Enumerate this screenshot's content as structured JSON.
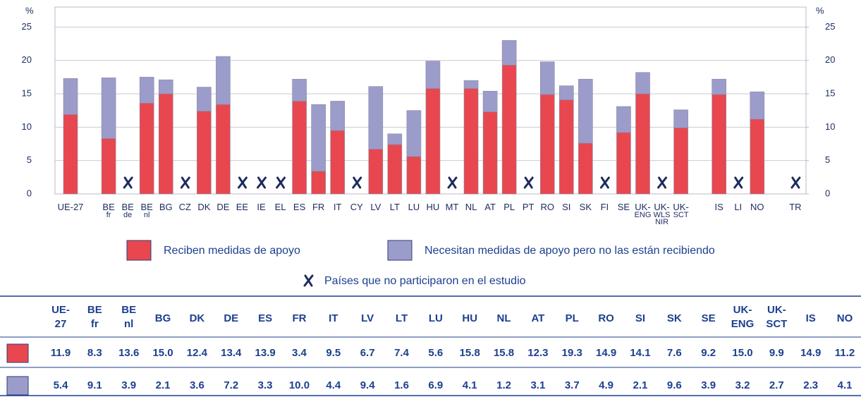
{
  "chart_data": {
    "type": "stacked_bar",
    "y_unit": "%",
    "categories": [
      [
        "UE-27"
      ],
      null,
      [
        "BE",
        "fr"
      ],
      [
        "BE",
        "de"
      ],
      [
        "BE",
        "nl"
      ],
      [
        "BG"
      ],
      [
        "CZ"
      ],
      [
        "DK"
      ],
      [
        "DE"
      ],
      [
        "EE"
      ],
      [
        "IE"
      ],
      [
        "EL"
      ],
      [
        "ES"
      ],
      [
        "FR"
      ],
      [
        "IT"
      ],
      [
        "CY"
      ],
      [
        "LV"
      ],
      [
        "LT"
      ],
      [
        "LU"
      ],
      [
        "HU"
      ],
      [
        "MT"
      ],
      [
        "NL"
      ],
      [
        "AT"
      ],
      [
        "PL"
      ],
      [
        "PT"
      ],
      [
        "RO"
      ],
      [
        "SI"
      ],
      [
        "SK"
      ],
      [
        "FI"
      ],
      [
        "SE"
      ],
      [
        "UK-",
        "ENG"
      ],
      [
        "UK-",
        "WLS",
        "NIR"
      ],
      [
        "UK-",
        "SCT"
      ],
      null,
      [
        "IS"
      ],
      [
        "LI"
      ],
      [
        "NO"
      ],
      null,
      [
        "TR"
      ]
    ],
    "series": [
      {
        "name": "Reciben medidas de apoyo",
        "color": "#e8474f",
        "values": [
          11.9,
          null,
          8.3,
          null,
          13.6,
          15.0,
          null,
          12.4,
          13.4,
          null,
          null,
          null,
          13.9,
          3.4,
          9.5,
          null,
          6.7,
          7.4,
          5.6,
          15.8,
          null,
          15.8,
          12.3,
          19.3,
          null,
          14.9,
          14.1,
          7.6,
          null,
          9.2,
          15.0,
          null,
          9.9,
          null,
          14.9,
          null,
          11.2,
          null,
          null
        ],
        "value_labels": [
          "11.9",
          null,
          "8.3",
          null,
          "13.6",
          "15.0",
          null,
          "12.4",
          "13.4",
          null,
          null,
          null,
          "13.9",
          "3.4",
          "9.5",
          null,
          "6.7",
          "7.4",
          "5.6",
          "15.8",
          null,
          "15.8",
          "12.3",
          "19.3",
          null,
          "14.9",
          "14.1",
          "7.6",
          null,
          "9.2",
          "15.0",
          null,
          "9.9",
          null,
          "14.9",
          null,
          "11.2",
          null,
          null
        ]
      },
      {
        "name": "Necesitan medidas de apoyo pero no las están recibiendo",
        "color": "#9c9ccb",
        "values": [
          5.4,
          null,
          9.1,
          null,
          3.9,
          2.1,
          null,
          3.6,
          7.2,
          null,
          null,
          null,
          3.3,
          10.0,
          4.4,
          null,
          9.4,
          1.6,
          6.9,
          4.1,
          null,
          1.2,
          3.1,
          3.7,
          null,
          4.9,
          2.1,
          9.6,
          null,
          3.9,
          3.2,
          null,
          2.7,
          null,
          2.3,
          null,
          4.1,
          null,
          null
        ],
        "value_labels": [
          "5.4",
          null,
          "9.1",
          null,
          "3.9",
          "2.1",
          null,
          "3.6",
          "7.2",
          null,
          null,
          null,
          "3.3",
          "10.0",
          "4.4",
          null,
          "9.4",
          "1.6",
          "6.9",
          "4.1",
          null,
          "1.2",
          "3.1",
          "3.7",
          null,
          "4.9",
          "2.1",
          "9.6",
          null,
          "3.9",
          "3.2",
          null,
          "2.7",
          null,
          "2.3",
          null,
          "4.1",
          null,
          null
        ]
      }
    ],
    "missing_label": "Países que no participaron en el estudio",
    "ylim": [
      0,
      28
    ],
    "yticks": [
      0,
      5,
      10,
      15,
      20,
      25
    ],
    "y2lim": [
      0,
      28
    ],
    "y2ticks": [
      0,
      5,
      10,
      15,
      20,
      25
    ],
    "grid": true
  },
  "table": {
    "headers": [
      [
        "UE-",
        "27"
      ],
      [
        "BE",
        "fr"
      ],
      [
        "BE",
        "nl"
      ],
      [
        "BG"
      ],
      [
        "DK"
      ],
      [
        "DE"
      ],
      [
        "ES"
      ],
      [
        "FR"
      ],
      [
        "IT"
      ],
      [
        "LV"
      ],
      [
        "LT"
      ],
      [
        "LU"
      ],
      [
        "HU"
      ],
      [
        "NL"
      ],
      [
        "AT"
      ],
      [
        "PL"
      ],
      [
        "RO"
      ],
      [
        "SI"
      ],
      [
        "SK"
      ],
      [
        "SE"
      ],
      [
        "UK-",
        "ENG"
      ],
      [
        "UK-",
        "SCT"
      ],
      [
        "IS"
      ],
      [
        "NO"
      ]
    ]
  }
}
